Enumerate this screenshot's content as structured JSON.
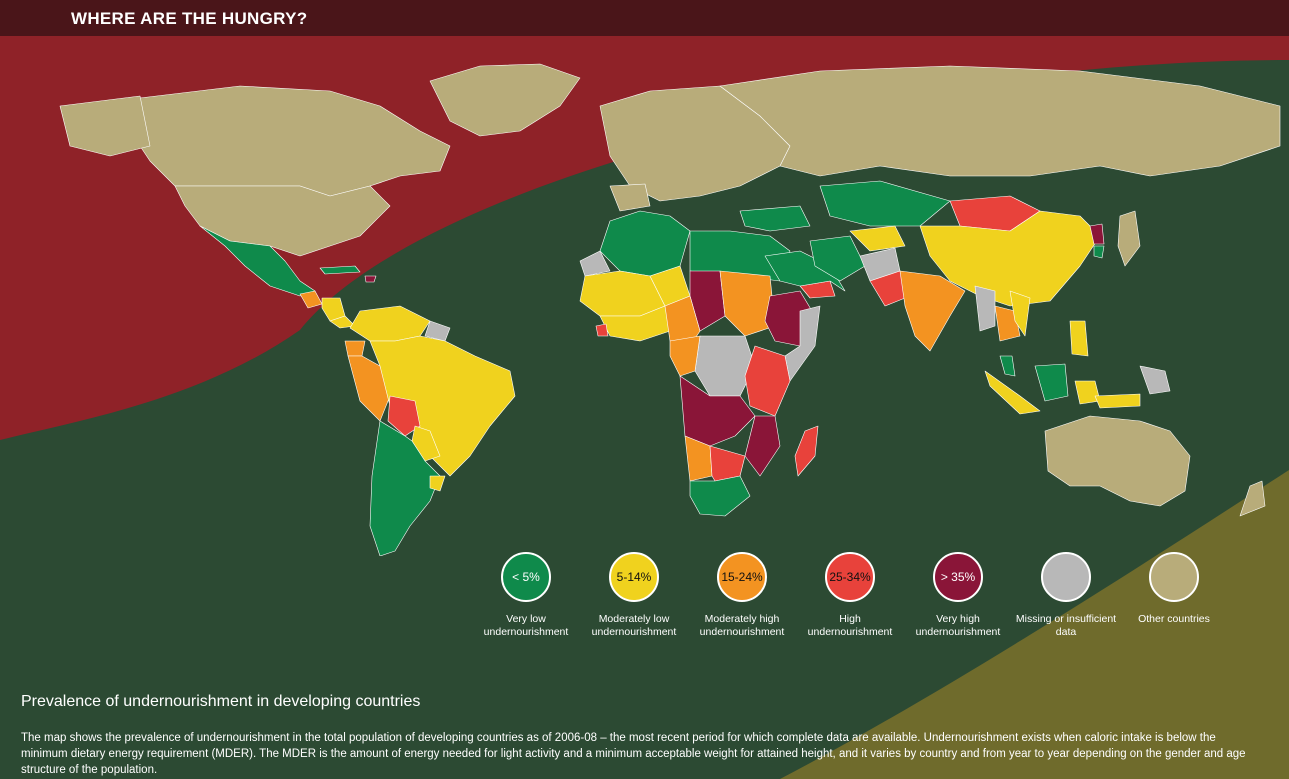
{
  "page": {
    "title": "WHERE ARE THE HUNGRY?",
    "map_title": "Prevalence of undernourishment in developing countries",
    "description": "The map shows the prevalence of undernourishment in the total population of developing countries as of 2006-08 – the most recent period for which complete data are available. Undernourishment exists when caloric intake is below the minimum dietary energy requirement (MDER). The MDER is the amount of energy needed for light activity and a minimum acceptable weight for attained height, and it varies by country and from year to year depending on the gender and age structure of the population."
  },
  "colors": {
    "very_low": "#0f8a4b",
    "moderately_low": "#f0d21e",
    "moderately_high": "#f39321",
    "high": "#e8423b",
    "very_high": "#8a1538",
    "missing": "#b8b8b8",
    "other": "#b8ac7a",
    "background_dark": "#2c4a33",
    "band_red": "#8f2228",
    "band_olive": "#6f6b2c",
    "title_bar": "#4a1519"
  },
  "legend": [
    {
      "badge": "< 5%",
      "label": "Very low undernourishment",
      "color": "#0f8a4b",
      "text_color": "#ffffff"
    },
    {
      "badge": "5-14%",
      "label": "Moderately low undernourishment",
      "color": "#f0d21e",
      "text_color": "#111111"
    },
    {
      "badge": "15-24%",
      "label": "Moderately high undernourishment",
      "color": "#f39321",
      "text_color": "#111111"
    },
    {
      "badge": "25-34%",
      "label": "High undernourishment",
      "color": "#e8423b",
      "text_color": "#111111"
    },
    {
      "badge": "> 35%",
      "label": "Very high undernourishment",
      "color": "#8a1538",
      "text_color": "#ffffff"
    },
    {
      "badge": "",
      "label": "Missing or insufficient data",
      "color": "#b8b8b8",
      "text_color": "#111111"
    },
    {
      "badge": "",
      "label": "Other countries",
      "color": "#b8ac7a",
      "text_color": "#111111"
    }
  ]
}
